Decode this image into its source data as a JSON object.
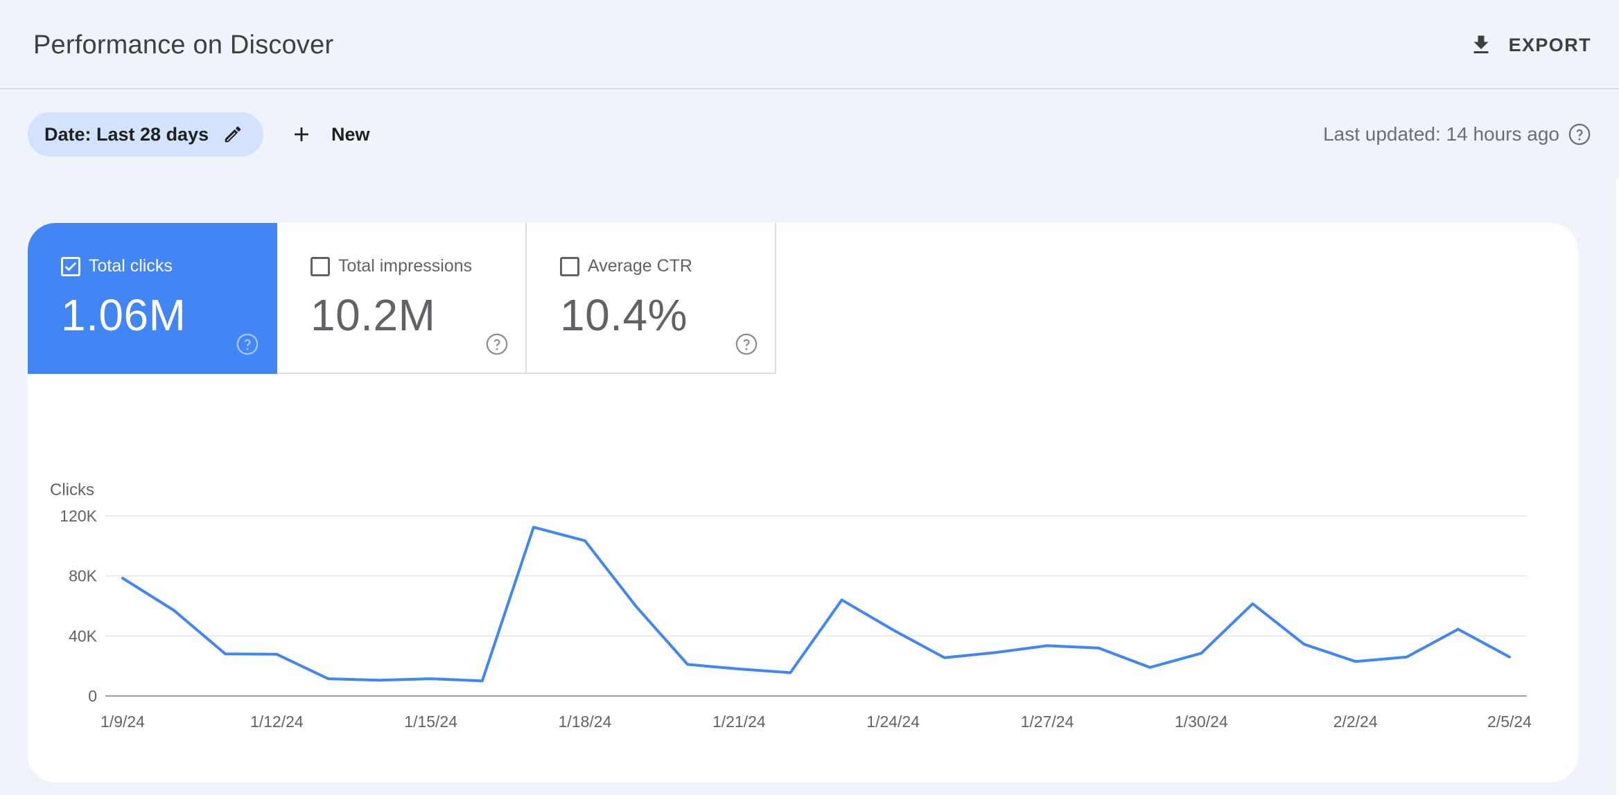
{
  "header": {
    "title": "Performance on Discover",
    "export_label": "EXPORT"
  },
  "filters": {
    "date_chip": "Date: Last 28 days",
    "new_label": "New",
    "last_updated": "Last updated: 14 hours ago"
  },
  "metrics": [
    {
      "label": "Total clicks",
      "value": "1.06M",
      "checked": true
    },
    {
      "label": "Total impressions",
      "value": "10.2M",
      "checked": false
    },
    {
      "label": "Average CTR",
      "value": "10.4%",
      "checked": false
    }
  ],
  "colors": {
    "accent": "#4285f4",
    "chip": "#d3e3fd",
    "background": "#eff3fa"
  },
  "chart_data": {
    "type": "line",
    "ylabel": "Clicks",
    "ylim": [
      0,
      120000
    ],
    "yticks": [
      0,
      40000,
      80000,
      120000
    ],
    "ytick_labels": [
      "0",
      "40K",
      "80K",
      "120K"
    ],
    "x_tick_labels": [
      "1/9/24",
      "1/12/24",
      "1/15/24",
      "1/18/24",
      "1/21/24",
      "1/24/24",
      "1/27/24",
      "1/30/24",
      "2/2/24",
      "2/5/24"
    ],
    "grid": true,
    "series": [
      {
        "color": "#4285f4",
        "x": [
          "1/9/24",
          "1/10/24",
          "1/11/24",
          "1/12/24",
          "1/13/24",
          "1/14/24",
          "1/15/24",
          "1/16/24",
          "1/17/24",
          "1/18/24",
          "1/19/24",
          "1/20/24",
          "1/21/24",
          "1/22/24",
          "1/23/24",
          "1/24/24",
          "1/25/24",
          "1/26/24",
          "1/27/24",
          "1/28/24",
          "1/29/24",
          "1/30/24",
          "1/31/24",
          "2/1/24",
          "2/2/24",
          "2/3/24",
          "2/4/24",
          "2/5/24"
        ],
        "values": [
          78500,
          57000,
          28000,
          27800,
          11500,
          10500,
          11500,
          10000,
          112500,
          103500,
          59500,
          21000,
          18000,
          15500,
          64000,
          44000,
          25500,
          29000,
          33500,
          32000,
          19000,
          28500,
          61500,
          34500,
          23000,
          26000,
          44500,
          26000
        ]
      }
    ]
  }
}
